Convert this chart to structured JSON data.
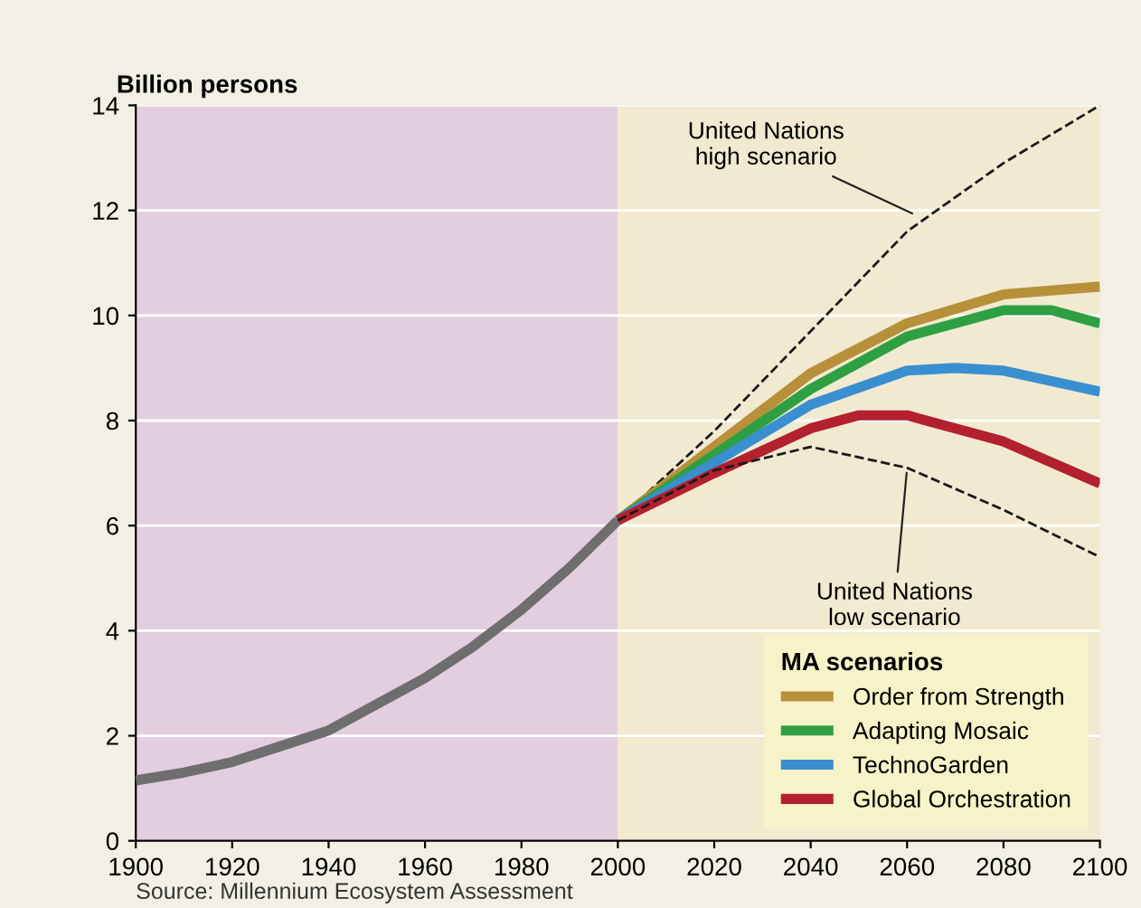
{
  "chart_data": {
    "type": "line",
    "ylabel": "Billion persons",
    "legend_title": "MA scenarios",
    "legend": "bottom right",
    "grid": "y",
    "marker": "none",
    "xlim": [
      1900,
      2100
    ],
    "ylim": [
      0,
      14
    ],
    "xticks": [
      1900,
      1920,
      1940,
      1960,
      1980,
      2000,
      2020,
      2040,
      2060,
      2080,
      2100
    ],
    "yticks": [
      0,
      2,
      4,
      6,
      8,
      10,
      12,
      14
    ],
    "bands": [
      {
        "axis": "x",
        "from": 1900,
        "to": 2000,
        "color": "#e2cedf"
      },
      {
        "axis": "x",
        "from": 2000,
        "to": 2100,
        "color": "#f1ead0"
      }
    ],
    "series": [
      {
        "color": "#6e6e6e",
        "x": [
          1900,
          1910,
          1920,
          1930,
          1940,
          1950,
          1960,
          1970,
          1980,
          1990,
          2000
        ],
        "values": [
          1.15,
          1.3,
          1.5,
          1.8,
          2.1,
          2.6,
          3.1,
          3.7,
          4.4,
          5.2,
          6.1
        ]
      },
      {
        "color": "#1a1a1a",
        "line_style": "dashed",
        "x": [
          2000,
          2020,
          2040,
          2060,
          2080,
          2100
        ],
        "values": [
          6.1,
          7.8,
          9.7,
          11.6,
          12.9,
          14.0
        ]
      },
      {
        "name": "Order from Strength",
        "color": "#b8903a",
        "x": [
          2000,
          2020,
          2040,
          2060,
          2080,
          2100
        ],
        "values": [
          6.1,
          7.5,
          8.9,
          9.85,
          10.4,
          10.55
        ]
      },
      {
        "name": "Adapting Mosaic",
        "color": "#2ea043",
        "x": [
          2000,
          2020,
          2040,
          2060,
          2080,
          2090,
          2100
        ],
        "values": [
          6.1,
          7.35,
          8.6,
          9.6,
          10.1,
          10.1,
          9.85
        ]
      },
      {
        "name": "TechnoGarden",
        "color": "#3a8fd0",
        "x": [
          2000,
          2020,
          2040,
          2060,
          2070,
          2080,
          2100
        ],
        "values": [
          6.1,
          7.2,
          8.3,
          8.95,
          9.0,
          8.95,
          8.55
        ]
      },
      {
        "name": "Global Orchestration",
        "color": "#b3202e",
        "x": [
          2000,
          2020,
          2040,
          2050,
          2060,
          2080,
          2100
        ],
        "values": [
          6.1,
          7.0,
          7.85,
          8.1,
          8.1,
          7.6,
          6.8
        ]
      },
      {
        "color": "#1a1a1a",
        "line_style": "dashed",
        "x": [
          2000,
          2020,
          2040,
          2060,
          2080,
          2100
        ],
        "values": [
          6.1,
          7.05,
          7.5,
          7.1,
          6.3,
          5.4
        ]
      }
    ],
    "annotations": [
      {
        "text": "United Nations\nhigh scenario",
        "x": 2062,
        "y": 11.9
      },
      {
        "text": "United Nations\nlow scenario",
        "x": 2060,
        "y": 7.1
      },
      "Source: Millennium Ecosystem Assessment"
    ]
  }
}
